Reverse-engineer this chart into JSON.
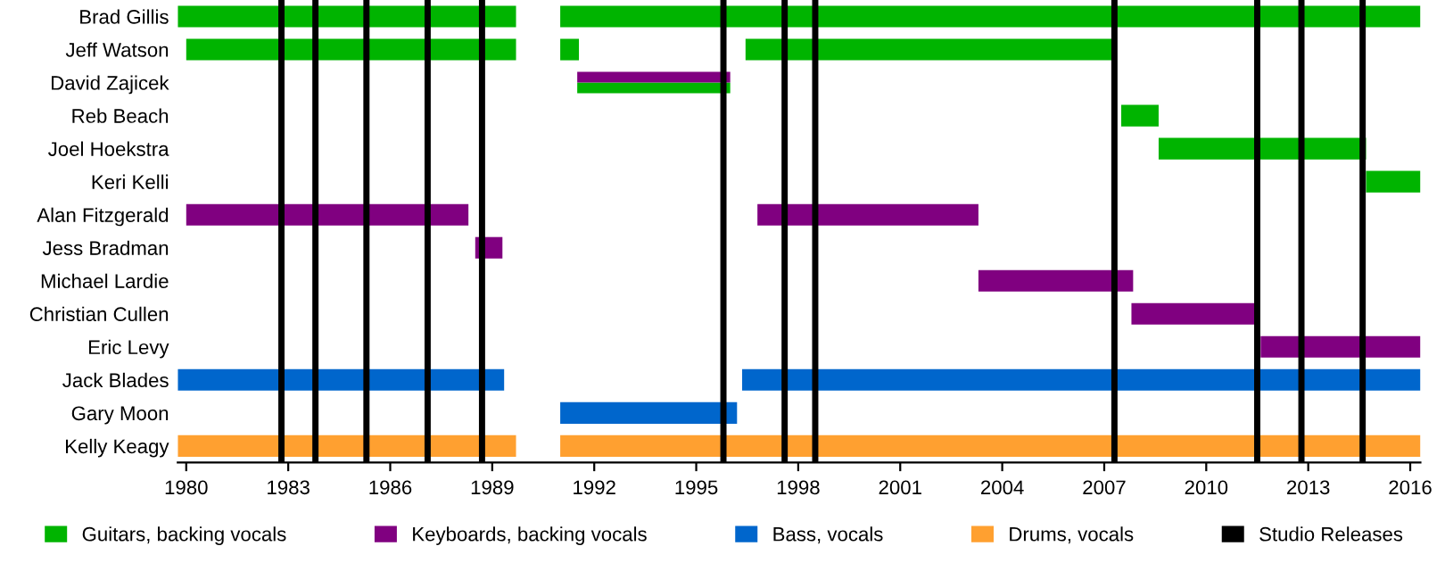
{
  "chart_data": {
    "type": "bar",
    "orientation": "horizontal",
    "legend": "bottom",
    "grid": false,
    "categories": [
      "Brad Gillis",
      "Jeff Watson",
      "David Zajicek",
      "Reb Beach",
      "Joel Hoekstra",
      "Keri Kelli",
      "Alan Fitzgerald",
      "Jess Bradman",
      "Michael Lardie",
      "Christian Cullen",
      "Eric Levy",
      "Jack Blades",
      "Gary Moon",
      "Kelly Keagy"
    ],
    "xlim": [
      1979.75,
      2016.3
    ],
    "xticks": [
      1980,
      1983,
      1986,
      1989,
      1992,
      1995,
      1998,
      2001,
      2004,
      2007,
      2010,
      2013,
      2016
    ],
    "series": [
      {
        "name": "Guitars, backing vocals",
        "color": "#00b400",
        "base": [
          1979.75,
          1980.0,
          1991.5,
          2007.5,
          2008.6,
          2014.7,
          null,
          null,
          null,
          null,
          null,
          null,
          null,
          null
        ],
        "values": [
          9.95,
          9.7,
          4.5,
          1.1,
          6.1,
          1.6,
          null,
          null,
          null,
          null,
          null,
          null,
          null,
          null
        ]
      },
      {
        "color": "#00b400",
        "base": [
          1991.0,
          1991.0,
          null,
          null,
          null,
          null,
          null,
          null,
          null,
          null,
          null,
          null,
          null,
          null
        ],
        "values": [
          25.3,
          0.55,
          null,
          null,
          null,
          null,
          null,
          null,
          null,
          null,
          null,
          null,
          null,
          null
        ]
      },
      {
        "color": "#00b400",
        "base": [
          null,
          1996.45,
          null,
          null,
          null,
          null,
          null,
          null,
          null,
          null,
          null,
          null,
          null,
          null
        ],
        "values": [
          null,
          10.85,
          null,
          null,
          null,
          null,
          null,
          null,
          null,
          null,
          null,
          null,
          null,
          null
        ]
      },
      {
        "name": "Keyboards, backing vocals",
        "color": "#800080",
        "base": [
          null,
          null,
          1991.5,
          null,
          null,
          null,
          1980.0,
          1988.5,
          2003.3,
          2007.8,
          2011.6,
          null,
          null,
          null
        ],
        "values": [
          null,
          null,
          4.5,
          null,
          null,
          null,
          8.3,
          0.8,
          4.55,
          3.7,
          4.7,
          null,
          null,
          null
        ]
      },
      {
        "color": "#800080",
        "base": [
          null,
          null,
          null,
          null,
          null,
          null,
          1996.8,
          null,
          null,
          null,
          null,
          null,
          null,
          null
        ],
        "values": [
          null,
          null,
          null,
          null,
          null,
          null,
          6.5,
          null,
          null,
          null,
          null,
          null,
          null,
          null
        ]
      },
      {
        "name": "Bass, vocals",
        "color": "#0066cc",
        "base": [
          null,
          null,
          null,
          null,
          null,
          null,
          null,
          null,
          null,
          null,
          null,
          1979.75,
          1991.0,
          null
        ],
        "values": [
          null,
          null,
          null,
          null,
          null,
          null,
          null,
          null,
          null,
          null,
          null,
          9.6,
          5.2,
          null
        ]
      },
      {
        "color": "#0066cc",
        "base": [
          null,
          null,
          null,
          null,
          null,
          null,
          null,
          null,
          null,
          null,
          null,
          1996.35,
          null,
          null
        ],
        "values": [
          null,
          null,
          null,
          null,
          null,
          null,
          null,
          null,
          null,
          null,
          null,
          19.95,
          null,
          null
        ]
      },
      {
        "name": "Drums, vocals",
        "color": "#ffa030",
        "base": [
          null,
          null,
          null,
          null,
          null,
          null,
          null,
          null,
          null,
          null,
          null,
          null,
          null,
          1979.75
        ],
        "values": [
          null,
          null,
          null,
          null,
          null,
          null,
          null,
          null,
          null,
          null,
          null,
          null,
          null,
          9.95
        ]
      },
      {
        "color": "#ffa030",
        "base": [
          null,
          null,
          null,
          null,
          null,
          null,
          null,
          null,
          null,
          null,
          null,
          null,
          null,
          1991.0
        ],
        "values": [
          null,
          null,
          null,
          null,
          null,
          null,
          null,
          null,
          null,
          null,
          null,
          null,
          null,
          25.3
        ]
      }
    ],
    "ref_lines": [
      {
        "axis": "x",
        "value": 1982.8,
        "label": "Studio Releases",
        "color": "#000000"
      },
      {
        "axis": "x",
        "value": 1983.8,
        "color": "#000000"
      },
      {
        "axis": "x",
        "value": 1985.3,
        "color": "#000000"
      },
      {
        "axis": "x",
        "value": 1987.1,
        "color": "#000000"
      },
      {
        "axis": "x",
        "value": 1988.7,
        "color": "#000000"
      },
      {
        "axis": "x",
        "value": 1995.8,
        "color": "#000000"
      },
      {
        "axis": "x",
        "value": 1997.6,
        "color": "#000000"
      },
      {
        "axis": "x",
        "value": 1998.5,
        "color": "#000000"
      },
      {
        "axis": "x",
        "value": 2007.3,
        "color": "#000000"
      },
      {
        "axis": "x",
        "value": 2011.5,
        "color": "#000000"
      },
      {
        "axis": "x",
        "value": 2012.8,
        "color": "#000000"
      },
      {
        "axis": "x",
        "value": 2014.6,
        "color": "#000000"
      }
    ]
  }
}
